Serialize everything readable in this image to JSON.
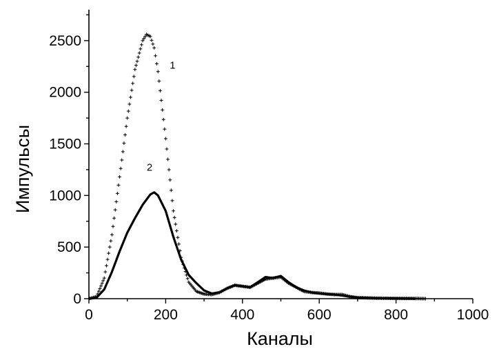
{
  "chart_data": {
    "type": "line",
    "title": "",
    "xlabel": "Каналы",
    "ylabel": "Импульсы",
    "xlim": [
      0,
      1000
    ],
    "ylim": [
      0,
      2800
    ],
    "xticks": [
      0,
      200,
      400,
      600,
      800,
      1000
    ],
    "yticks": [
      0,
      500,
      1000,
      1500,
      2000,
      2500
    ],
    "grid": false,
    "series": [
      {
        "name": "1",
        "marker": "plus",
        "x": [
          0,
          20,
          40,
          60,
          80,
          100,
          120,
          140,
          150,
          160,
          170,
          180,
          200,
          220,
          240,
          260,
          280,
          300,
          320,
          340,
          360,
          380,
          400,
          420,
          440,
          460,
          480,
          500,
          520,
          540,
          560,
          580,
          600,
          620,
          640,
          660,
          680,
          700,
          750,
          800,
          850,
          880
        ],
        "y": [
          0,
          20,
          200,
          620,
          1180,
          1750,
          2220,
          2500,
          2560,
          2540,
          2430,
          2200,
          1550,
          850,
          400,
          160,
          70,
          45,
          40,
          60,
          100,
          130,
          120,
          110,
          150,
          190,
          200,
          210,
          150,
          110,
          70,
          60,
          55,
          45,
          40,
          40,
          20,
          10,
          5,
          3,
          2,
          0
        ]
      },
      {
        "name": "2",
        "marker": "line",
        "x": [
          0,
          20,
          40,
          60,
          80,
          100,
          120,
          140,
          160,
          170,
          180,
          200,
          220,
          240,
          260,
          280,
          300,
          320,
          340,
          360,
          380,
          400,
          420,
          440,
          460,
          480,
          500,
          520,
          540,
          560,
          580,
          600,
          620,
          640,
          660,
          680,
          700,
          750,
          800,
          850
        ],
        "y": [
          0,
          10,
          90,
          260,
          460,
          640,
          780,
          910,
          1010,
          1030,
          1000,
          850,
          600,
          380,
          230,
          150,
          80,
          50,
          60,
          100,
          130,
          120,
          110,
          160,
          210,
          200,
          220,
          160,
          110,
          80,
          60,
          50,
          45,
          40,
          30,
          20,
          10,
          5,
          3,
          0
        ]
      }
    ],
    "series_labels": [
      {
        "text": "1",
        "x": 218,
        "y": 2230
      },
      {
        "text": "2",
        "x": 158,
        "y": 1240
      }
    ]
  }
}
